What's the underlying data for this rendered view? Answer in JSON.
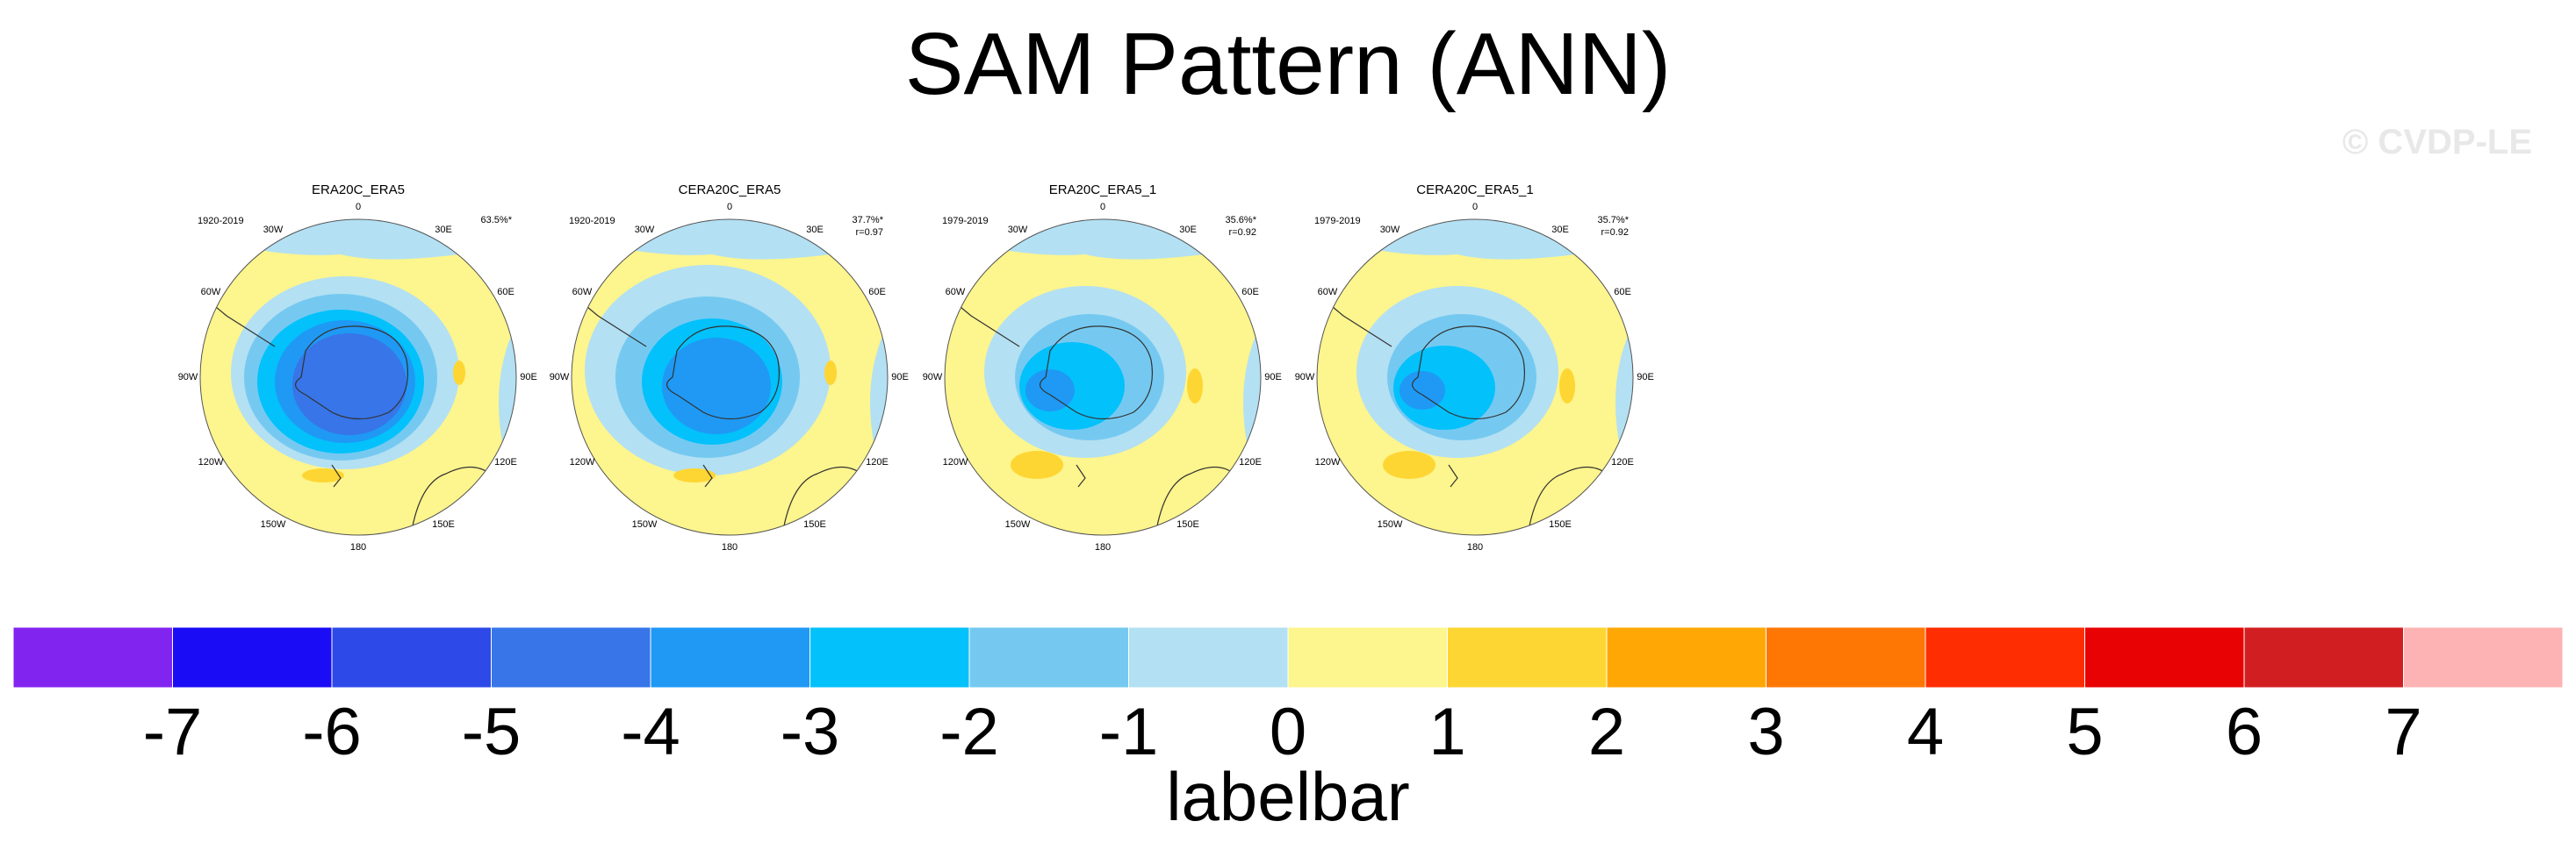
{
  "title": "SAM Pattern (ANN)",
  "watermark": "© CVDP-LE",
  "panels": [
    {
      "title": "ERA20C_ERA5",
      "period": "1920-2019",
      "pct": "63.5%*",
      "r": ""
    },
    {
      "title": "CERA20C_ERA5",
      "period": "1920-2019",
      "pct": "37.7%*",
      "r": "r=0.97"
    },
    {
      "title": "ERA20C_ERA5_1",
      "period": "1979-2019",
      "pct": "35.6%*",
      "r": "r=0.92"
    },
    {
      "title": "CERA20C_ERA5_1",
      "period": "1979-2019",
      "pct": "35.7%*",
      "r": "r=0.92"
    }
  ],
  "lon_labels": [
    "0",
    "30E",
    "60E",
    "90E",
    "120E",
    "150E",
    "180",
    "150W",
    "120W",
    "90W",
    "60W",
    "30W"
  ],
  "labelbar": {
    "title": "labelbar",
    "ticks": [
      "-7",
      "-6",
      "-5",
      "-4",
      "-3",
      "-2",
      "-1",
      "0",
      "1",
      "2",
      "3",
      "4",
      "5",
      "6",
      "7"
    ],
    "colors": [
      "#8224f0",
      "#1a0cf5",
      "#2d4ae8",
      "#3775e8",
      "#1f99f4",
      "#03c1fb",
      "#75c9f1",
      "#b3e0f3",
      "#fdf58d",
      "#fed633",
      "#ffa805",
      "#fe7704",
      "#fe2e02",
      "#e80203",
      "#d11f21",
      "#fdb3b4"
    ]
  }
}
